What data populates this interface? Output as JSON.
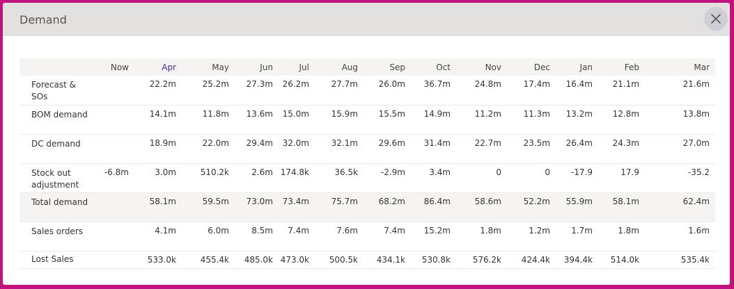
{
  "modal": {
    "title": "Demand",
    "close_icon": "close-icon"
  },
  "table": {
    "columns": [
      "",
      "Now",
      "Apr",
      "May",
      "Jun",
      "Jul",
      "Aug",
      "Sep",
      "Oct",
      "Nov",
      "Dec",
      "Jan",
      "Feb",
      "Mar"
    ],
    "active_column": "Apr",
    "rows": [
      {
        "label": "Forecast & SOs",
        "values": [
          "",
          "22.2m",
          "25.2m",
          "27.3m",
          "26.2m",
          "27.7m",
          "26.0m",
          "36.7m",
          "24.8m",
          "17.4m",
          "16.4m",
          "21.1m",
          "21.6m"
        ]
      },
      {
        "label": "BOM demand",
        "values": [
          "",
          "14.1m",
          "11.8m",
          "13.6m",
          "15.0m",
          "15.9m",
          "15.5m",
          "14.9m",
          "11.2m",
          "11.3m",
          "13.2m",
          "12.8m",
          "13.8m"
        ]
      },
      {
        "label": "DC demand",
        "values": [
          "",
          "18.9m",
          "22.0m",
          "29.4m",
          "32.0m",
          "32.1m",
          "29.6m",
          "31.4m",
          "22.7m",
          "23.5m",
          "26.4m",
          "24.3m",
          "27.0m"
        ]
      },
      {
        "label": "Stock out adjustment",
        "values": [
          "-6.8m",
          "3.0m",
          "510.2k",
          "2.6m",
          "174.8k",
          "36.5k",
          "-2.9m",
          "3.4m",
          "0",
          "0",
          "-17.9",
          "17.9",
          "-35.2"
        ]
      },
      {
        "label": "Total demand",
        "values": [
          "",
          "58.1m",
          "59.5m",
          "73.0m",
          "73.4m",
          "75.7m",
          "68.2m",
          "86.4m",
          "58.6m",
          "52.2m",
          "55.9m",
          "58.1m",
          "62.4m"
        ]
      },
      {
        "label": "Sales orders",
        "values": [
          "",
          "4.1m",
          "6.0m",
          "8.5m",
          "7.4m",
          "7.6m",
          "7.4m",
          "15.2m",
          "1.8m",
          "1.2m",
          "1.7m",
          "1.8m",
          "1.6m"
        ]
      },
      {
        "label": "Lost Sales",
        "values": [
          "",
          "533.0k",
          "455.4k",
          "485.0k",
          "473.0k",
          "500.5k",
          "434.1k",
          "530.8k",
          "576.2k",
          "424.4k",
          "394.4k",
          "514.0k",
          "535.4k"
        ]
      }
    ]
  },
  "colors": {
    "frame": "#c2127e",
    "header_bg": "#e3e1df",
    "active_month": "#4a2d8c"
  }
}
